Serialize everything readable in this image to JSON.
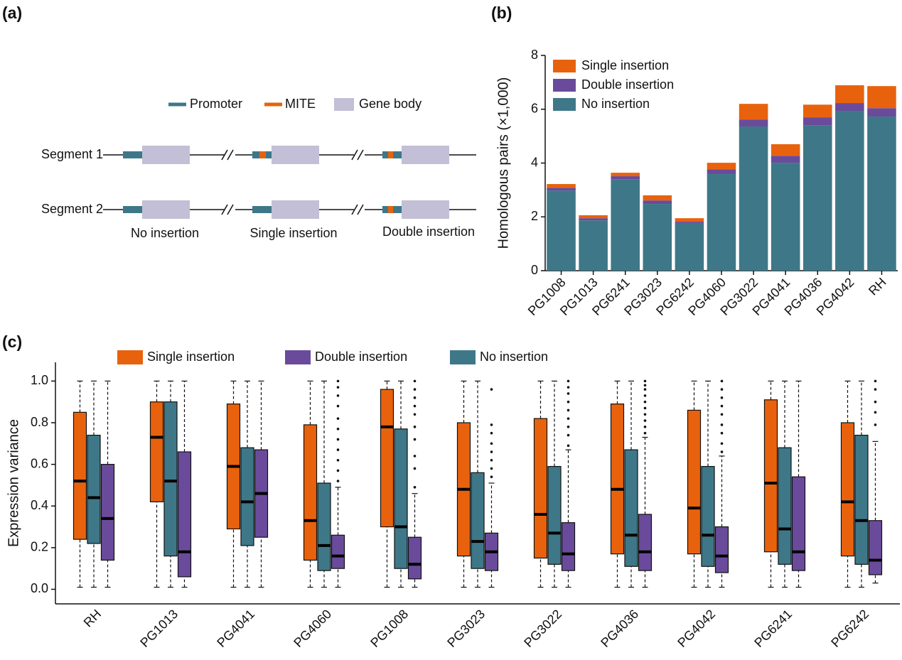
{
  "diagram": {
    "label": "(a)",
    "legend": [
      "Promoter",
      "MITE",
      "Gene body"
    ],
    "rows": [
      "Segment 1",
      "Segment 2"
    ],
    "columns": [
      "No insertion",
      "Single insertion",
      "Double insertion"
    ]
  },
  "chart_data": [
    {
      "type": "stacked_bar",
      "label": "(b)",
      "y_label": "Homologous pairs (×1,000)",
      "categories": [
        "PG1008",
        "PG1013",
        "PG6241",
        "PG3023",
        "PG6242",
        "PG4060",
        "PG3022",
        "PG4041",
        "PG4036",
        "PG4042",
        "RH"
      ],
      "series": [
        {
          "name": "No insertion",
          "color": "#3e7888",
          "values": [
            2.98,
            1.87,
            3.4,
            2.48,
            1.77,
            3.59,
            5.36,
            4.01,
            5.41,
            5.94,
            5.73
          ]
        },
        {
          "name": "Double insertion",
          "color": "#6a4b9b",
          "values": [
            0.1,
            0.08,
            0.11,
            0.13,
            0.05,
            0.18,
            0.26,
            0.26,
            0.29,
            0.29,
            0.31
          ]
        },
        {
          "name": "Single insertion",
          "color": "#e8620e",
          "values": [
            0.14,
            0.11,
            0.13,
            0.19,
            0.13,
            0.24,
            0.58,
            0.43,
            0.47,
            0.66,
            0.82
          ]
        }
      ],
      "ylim": [
        0,
        8
      ],
      "yticks": [
        0,
        2,
        4,
        6,
        8
      ]
    },
    {
      "type": "box",
      "label": "(c)",
      "y_label": "Expression variance",
      "categories": [
        "RH",
        "PG1013",
        "PG4041",
        "PG4060",
        "PG1008",
        "PG3023",
        "PG3022",
        "PG4036",
        "PG4042",
        "PG6241",
        "PG6242"
      ],
      "series": [
        {
          "name": "Single insertion",
          "color": "#e8620e",
          "min": [
            0.01,
            0.01,
            0.01,
            0.01,
            0.01,
            0.01,
            0.01,
            0.01,
            0.01,
            0.01,
            0.01
          ],
          "q1": [
            0.24,
            0.42,
            0.29,
            0.14,
            0.3,
            0.16,
            0.15,
            0.17,
            0.17,
            0.18,
            0.16
          ],
          "median": [
            0.52,
            0.73,
            0.59,
            0.33,
            0.78,
            0.48,
            0.36,
            0.48,
            0.39,
            0.51,
            0.42
          ],
          "q3": [
            0.85,
            0.9,
            0.89,
            0.79,
            0.96,
            0.8,
            0.82,
            0.89,
            0.86,
            0.91,
            0.8
          ],
          "max": [
            1.0,
            1.0,
            1.0,
            1.0,
            1.0,
            1.0,
            1.0,
            1.0,
            1.0,
            1.0,
            1.0
          ],
          "outliers": [
            [],
            [],
            [],
            [],
            [],
            [],
            [],
            [],
            [],
            [],
            []
          ]
        },
        {
          "name": "Double insertion",
          "color": "#6a4b9b",
          "min": [
            0.01,
            0.01,
            0.01,
            0.01,
            0.01,
            0.01,
            0.01,
            0.01,
            0.01,
            0.01,
            0.03
          ],
          "q1": [
            0.14,
            0.06,
            0.25,
            0.1,
            0.05,
            0.09,
            0.09,
            0.09,
            0.08,
            0.09,
            0.07
          ],
          "median": [
            0.34,
            0.18,
            0.46,
            0.16,
            0.12,
            0.18,
            0.17,
            0.18,
            0.16,
            0.18,
            0.14
          ],
          "q3": [
            0.6,
            0.66,
            0.67,
            0.26,
            0.25,
            0.27,
            0.32,
            0.36,
            0.3,
            0.54,
            0.33
          ],
          "max": [
            1.0,
            1.0,
            1.0,
            0.49,
            0.46,
            0.51,
            0.67,
            0.73,
            0.64,
            1.0,
            0.71
          ],
          "outliers": [
            [],
            [],
            [],
            [
              0.52,
              0.57,
              0.62,
              0.67,
              0.72,
              0.77,
              0.82,
              0.88,
              0.93,
              0.97,
              1.0
            ],
            [
              0.49,
              0.58,
              0.64,
              0.72,
              0.78,
              0.84,
              0.88,
              0.92,
              0.96,
              1.0
            ],
            [
              0.54,
              0.58,
              0.62,
              0.66,
              0.7,
              0.75,
              0.79,
              0.96
            ],
            [
              0.69,
              0.74,
              0.78,
              0.82,
              0.86,
              0.9,
              0.94,
              0.97,
              1.0
            ],
            [
              0.75,
              0.78,
              0.81,
              0.84,
              0.87,
              0.9,
              0.93,
              0.96,
              0.98,
              1.0
            ],
            [
              0.66,
              0.7,
              0.75,
              0.79,
              0.84,
              0.88,
              0.92,
              0.96,
              1.0
            ],
            [],
            [
              0.79,
              0.85,
              0.9,
              0.96,
              1.0
            ]
          ]
        },
        {
          "name": "No insertion",
          "color": "#3e7888",
          "min": [
            0.01,
            0.01,
            0.01,
            0.01,
            0.01,
            0.01,
            0.01,
            0.01,
            0.01,
            0.01,
            0.01
          ],
          "q1": [
            0.22,
            0.16,
            0.21,
            0.09,
            0.1,
            0.1,
            0.12,
            0.11,
            0.11,
            0.12,
            0.12
          ],
          "median": [
            0.44,
            0.52,
            0.42,
            0.21,
            0.3,
            0.23,
            0.27,
            0.26,
            0.26,
            0.29,
            0.33
          ],
          "q3": [
            0.74,
            0.9,
            0.68,
            0.51,
            0.77,
            0.56,
            0.59,
            0.67,
            0.59,
            0.68,
            0.74
          ],
          "max": [
            1.0,
            1.0,
            1.0,
            1.0,
            1.0,
            1.0,
            1.0,
            1.0,
            1.0,
            1.0,
            1.0
          ],
          "outliers": [
            [],
            [],
            [],
            [],
            [],
            [],
            [],
            [],
            [],
            [],
            []
          ]
        }
      ],
      "ylim": [
        -0.07,
        1.09
      ],
      "yticks": [
        {
          "value": 0,
          "label": "0.0"
        },
        {
          "value": 0.2,
          "label": "0.2"
        },
        {
          "value": 0.4,
          "label": "0.4"
        },
        {
          "value": 0.6,
          "label": "0.6"
        },
        {
          "value": 0.8,
          "label": "0.8"
        },
        {
          "value": 1.0,
          "label": "1.0"
        }
      ]
    }
  ]
}
